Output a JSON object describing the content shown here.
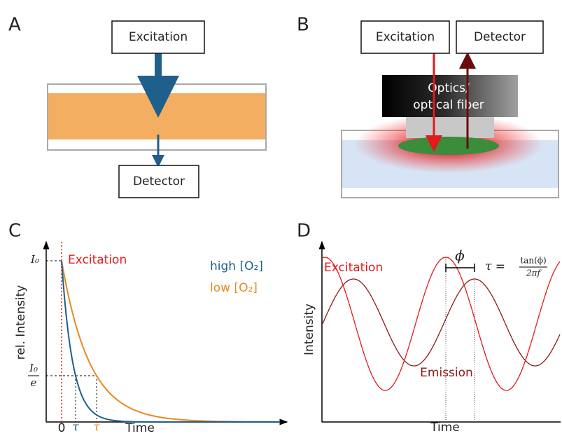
{
  "panels": {
    "a": {
      "label": "A",
      "excitation": "Excitation",
      "detector": "Detector"
    },
    "b": {
      "label": "B",
      "excitation": "Excitation",
      "detector": "Detector",
      "optics_line1": "Optics/",
      "optics_line2": "optical fiber"
    },
    "c": {
      "label": "C",
      "excitation": "Excitation",
      "high": "high [O₂]",
      "low": "low [O₂]",
      "y_label": "rel. Intensity",
      "i0": "I₀",
      "i0e_num": "I₀",
      "i0e_den": "e",
      "zero": "0",
      "tau_high": "τ",
      "tau_low": "τ",
      "x_label": "Time"
    },
    "d": {
      "label": "D",
      "excitation": "Excitation",
      "emission": "Emission",
      "phi": "ϕ",
      "formula_lhs": "τ =",
      "formula_num": "tan(ϕ)",
      "formula_den": "2πf",
      "y_label": "Intensity",
      "x_label": "Time"
    }
  }
}
